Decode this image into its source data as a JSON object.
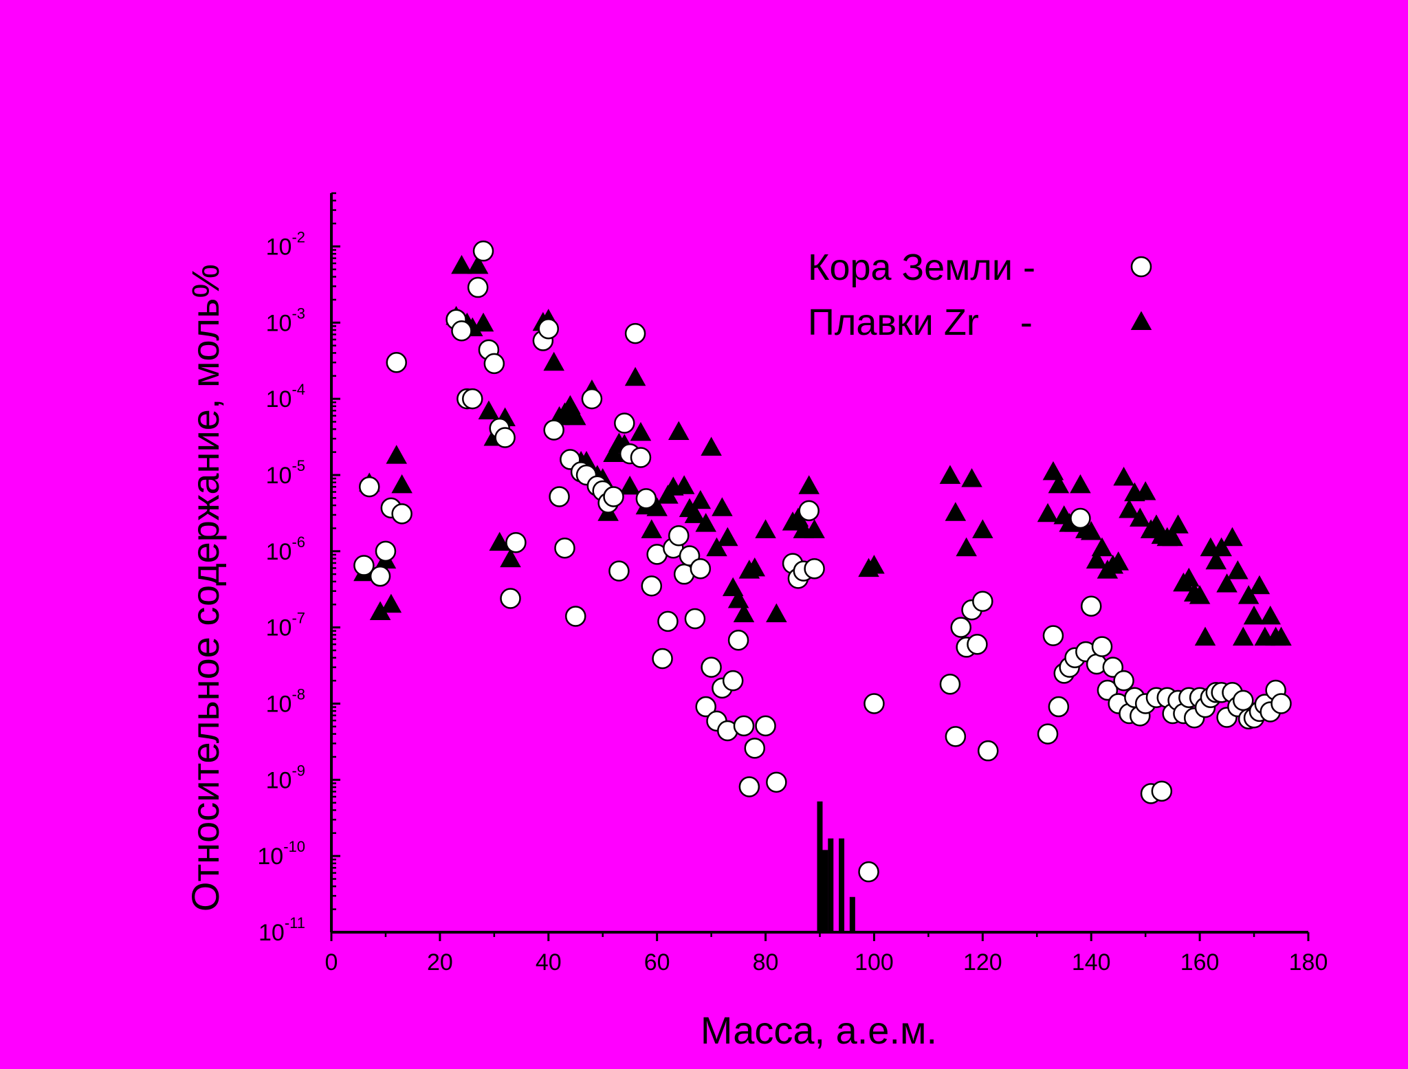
{
  "chart_data": {
    "type": "scatter",
    "xlabel": "Масса, а.е.м.",
    "ylabel": "Относительное содержание, моль%",
    "log_y": true,
    "background": "#ff00ff",
    "xlim": [
      0,
      180
    ],
    "xticks": [
      0,
      20,
      40,
      60,
      80,
      100,
      120,
      140,
      160,
      180
    ],
    "x_minor_ticks": [
      10,
      30,
      50,
      70,
      90,
      110,
      130,
      150,
      170
    ],
    "ylim": [
      1e-11,
      0.05
    ],
    "yticks": [
      {
        "value": 1e-11,
        "label": "10",
        "exponent": "-11"
      },
      {
        "value": 1e-10,
        "label": "10",
        "exponent": "-10"
      },
      {
        "value": 1e-09,
        "label": "10",
        "exponent": "-9"
      },
      {
        "value": 1e-08,
        "label": "10",
        "exponent": "-8"
      },
      {
        "value": 1e-07,
        "label": "10",
        "exponent": "-7"
      },
      {
        "value": 1e-06,
        "label": "10",
        "exponent": "-6"
      },
      {
        "value": 1e-05,
        "label": "10",
        "exponent": "-5"
      },
      {
        "value": 0.0001,
        "label": "10",
        "exponent": "-4"
      },
      {
        "value": 0.001,
        "label": "10",
        "exponent": "-3"
      },
      {
        "value": 0.01,
        "label": "10",
        "exponent": "-2"
      }
    ],
    "legend": "top-right",
    "series": [
      {
        "name": "Кора Земли -",
        "marker": "circle",
        "color": "#ffffff",
        "x": [
          6,
          7,
          9,
          10,
          11,
          12,
          13,
          23,
          24,
          25,
          26,
          27,
          28,
          29,
          30,
          31,
          32,
          33,
          34,
          39,
          40,
          41,
          42,
          43,
          44,
          45,
          46,
          47,
          48,
          49,
          50,
          51,
          52,
          53,
          54,
          55,
          56,
          57,
          58,
          59,
          60,
          61,
          62,
          63,
          64,
          65,
          66,
          67,
          68,
          69,
          70,
          71,
          72,
          73,
          74,
          75,
          76,
          77,
          78,
          80,
          82,
          85,
          86,
          87,
          88,
          89,
          99,
          100,
          114,
          115,
          116,
          117,
          118,
          119,
          120,
          121,
          132,
          133,
          134,
          135,
          136,
          137,
          138,
          139,
          140,
          141,
          142,
          143,
          144,
          145,
          146,
          147,
          148,
          149,
          150,
          151,
          152,
          153,
          154,
          155,
          156,
          157,
          158,
          159,
          160,
          161,
          162,
          163,
          164,
          165,
          166,
          167,
          168,
          169,
          170,
          171,
          172,
          173,
          174,
          175
        ],
        "values": [
          6.5e-07,
          7e-06,
          4.7e-07,
          1e-06,
          3.7e-06,
          0.0003,
          3.1e-06,
          0.0011,
          0.00078,
          0.0001,
          0.0001,
          0.0029,
          0.0087,
          0.00044,
          0.00029,
          4.1e-05,
          3.1e-05,
          2.4e-07,
          1.3e-06,
          0.00058,
          0.00083,
          3.9e-05,
          5.2e-06,
          1.1e-06,
          1.6e-05,
          1.4e-07,
          1.1e-05,
          1e-05,
          0.0001,
          7.2e-06,
          6.2e-06,
          4.3e-06,
          5.2e-06,
          5.5e-07,
          4.8e-05,
          1.9e-05,
          0.00072,
          1.7e-05,
          4.9e-06,
          3.5e-07,
          9.1e-07,
          3.9e-08,
          1.2e-07,
          1.1e-06,
          1.6e-06,
          5e-07,
          8.7e-07,
          1.3e-07,
          5.9e-07,
          9.1e-09,
          3e-08,
          5.9e-09,
          1.6e-08,
          4.4e-09,
          2e-08,
          6.8e-08,
          5.1e-09,
          8.1e-10,
          2.6e-09,
          5.1e-09,
          9.3e-10,
          6.9e-07,
          4.4e-07,
          5.5e-07,
          3.4e-06,
          5.9e-07,
          6.2e-11,
          1e-08,
          1.8e-08,
          3.7e-09,
          1e-07,
          5.5e-08,
          1.7e-07,
          6e-08,
          2.2e-07,
          2.4e-09,
          4e-09,
          7.8e-08,
          9.1e-09,
          2.5e-08,
          3e-08,
          4e-08,
          2.7e-06,
          4.8e-08,
          1.9e-07,
          3.3e-08,
          5.6e-08,
          1.5e-08,
          3e-08,
          1e-08,
          2e-08,
          7.4e-09,
          1.2e-08,
          6.9e-09,
          1e-08,
          6.6e-10,
          1.2e-08,
          7.1e-10,
          1.2e-08,
          7.4e-09,
          1.1e-08,
          7.4e-09,
          1.2e-08,
          6.5e-09,
          1.2e-08,
          8.9e-09,
          1.2e-08,
          1.4e-08,
          1.4e-08,
          6.6e-09,
          1.4e-08,
          9.1e-09,
          1.1e-08,
          6.3e-09,
          6.5e-09,
          7.9e-09,
          9.8e-09,
          7.8e-09,
          1.5e-08,
          1e-08
        ]
      },
      {
        "name": "Плавки Zr    -",
        "marker": "triangle",
        "color": "#000000",
        "x": [
          6,
          7,
          9,
          10,
          11,
          12,
          13,
          23,
          24,
          25,
          26,
          27,
          28,
          29,
          30,
          31,
          32,
          33,
          39,
          40,
          41,
          42,
          43,
          44,
          45,
          46,
          47,
          48,
          49,
          50,
          51,
          52,
          53,
          54,
          55,
          56,
          57,
          58,
          59,
          60,
          62,
          63,
          64,
          65,
          66,
          67,
          68,
          69,
          70,
          71,
          72,
          73,
          74,
          75,
          76,
          77,
          78,
          80,
          82,
          85,
          86,
          87,
          88,
          89,
          99,
          100,
          114,
          115,
          117,
          118,
          120,
          132,
          133,
          134,
          135,
          136,
          137,
          138,
          139,
          140,
          141,
          142,
          143,
          144,
          145,
          146,
          147,
          148,
          149,
          150,
          151,
          152,
          153,
          154,
          155,
          156,
          157,
          158,
          159,
          160,
          161,
          162,
          163,
          164,
          165,
          166,
          167,
          168,
          169,
          170,
          171,
          172,
          173,
          174,
          175
        ],
        "values": [
          5.2e-07,
          7.8e-06,
          1.6e-07,
          7.6e-07,
          2e-07,
          1.8e-05,
          7.4e-06,
          0.0012,
          0.0056,
          0.00098,
          0.00085,
          0.0056,
          0.00098,
          6.9e-05,
          3.1e-05,
          1.3e-06,
          5.6e-05,
          7.9e-07,
          0.001,
          0.0011,
          0.0003,
          5.8e-05,
          6.5e-05,
          8.1e-05,
          5.8e-05,
          1.5e-05,
          1.5e-05,
          0.00013,
          9.8e-06,
          8.9e-06,
          3.2e-06,
          1.9e-05,
          2.6e-05,
          2.5e-05,
          7.1e-06,
          0.00019,
          3.6e-05,
          3.9e-06,
          1.9e-06,
          3.7e-06,
          5.4e-06,
          6.9e-06,
          3.7e-05,
          7.2e-06,
          3.6e-06,
          3e-06,
          4.6e-06,
          2.3e-06,
          2.3e-05,
          1.1e-06,
          3.7e-06,
          1.5e-06,
          3.3e-07,
          2.3e-07,
          1.5e-07,
          5.6e-07,
          6e-07,
          1.9e-06,
          1.5e-07,
          2.4e-06,
          2.7e-06,
          1.9e-06,
          7.2e-06,
          1.9e-06,
          5.9e-07,
          6.5e-07,
          9.8e-06,
          3.2e-06,
          1.1e-06,
          8.9e-06,
          1.9e-06,
          3.1e-06,
          1.1e-05,
          7.4e-06,
          2.9e-06,
          2.3e-06,
          2.3e-06,
          7.4e-06,
          1.9e-06,
          1.8e-06,
          7.6e-07,
          1.1e-06,
          5.6e-07,
          6.5e-07,
          7.2e-07,
          9.3e-06,
          3.5e-06,
          5.8e-06,
          2.7e-06,
          6e-06,
          1.9e-06,
          2.2e-06,
          1.6e-06,
          1.5e-06,
          1.5e-06,
          2.2e-06,
          3.8e-07,
          4.4e-07,
          2.8e-07,
          2.6e-07,
          7.4e-08,
          1.1e-06,
          7.4e-07,
          1.1e-06,
          3.7e-07,
          1.5e-06,
          5.5e-07,
          7.4e-08,
          2.6e-07,
          1.4e-07,
          3.5e-07,
          7.4e-08,
          1.4e-07,
          7.4e-08,
          7.4e-08
        ]
      }
    ],
    "bars": {
      "color": "#000000",
      "x": [
        90,
        91,
        92,
        94,
        96
      ],
      "values": [
        5.2e-10,
        1.2e-10,
        1.7e-10,
        1.7e-10,
        2.9e-11
      ]
    }
  }
}
